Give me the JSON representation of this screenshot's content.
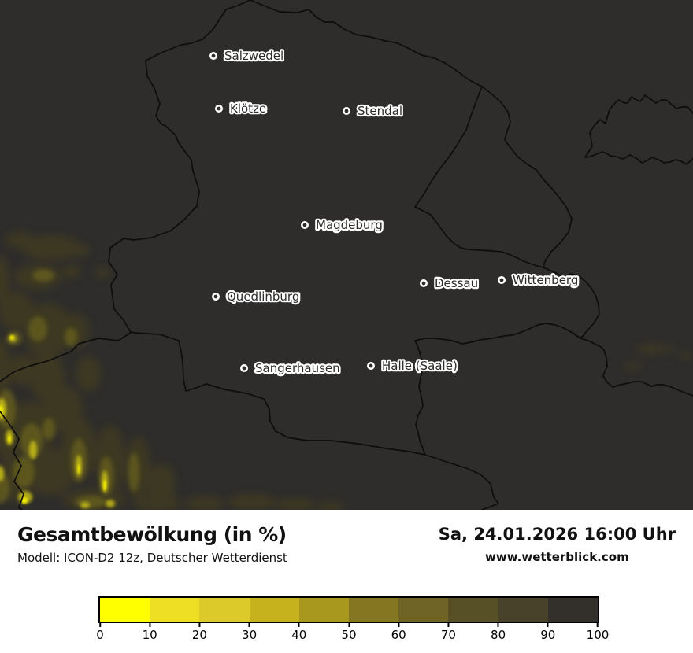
{
  "map": {
    "background_color": "#2e2d2b",
    "border_color": "#0d0d0d",
    "cities": [
      {
        "name": "Salzwedel"
      },
      {
        "name": "Klötze"
      },
      {
        "name": "Stendal"
      },
      {
        "name": "Magdeburg"
      },
      {
        "name": "Dessau"
      },
      {
        "name": "Wittenberg"
      },
      {
        "name": "Quedlinburg"
      },
      {
        "name": "Sangerhausen"
      },
      {
        "name": "Halle (Saale)"
      }
    ]
  },
  "footer": {
    "title": "Gesamtbewölkung (in %)",
    "model_line": "Modell: ICON-D2 12z, Deutscher Wetterdienst",
    "datetime": "Sa, 24.01.2026 16:00 Uhr",
    "website": "www.wetterblick.com"
  },
  "legend": {
    "unit": "%",
    "tick_labels": [
      "0",
      "10",
      "20",
      "30",
      "40",
      "50",
      "60",
      "70",
      "80",
      "90",
      "100"
    ],
    "segment_colors": [
      "#ffff00",
      "#eedf24",
      "#dcca2a",
      "#c6b21c",
      "#a8991e",
      "#857722",
      "#6f6325",
      "#575026",
      "#474229",
      "#33302c"
    ]
  }
}
